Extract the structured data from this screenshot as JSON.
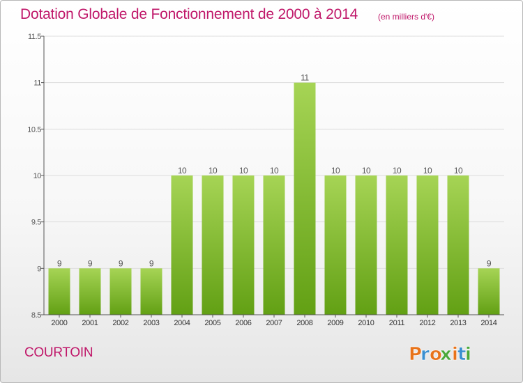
{
  "title": "Dotation Globale de Fonctionnement de 2000 à 2014",
  "subtitle": "(en milliers d'€)",
  "commune": "COURTOIN",
  "logo": {
    "text": "Proxiti",
    "colors": [
      "#e8731a",
      "#3a8fd0",
      "#e8731a",
      "#4aa83a",
      "#e8731a",
      "#3a8fd0",
      "#4aa83a"
    ]
  },
  "colors": {
    "bar_top": "#a6d455",
    "bar_bottom": "#62a014",
    "title": "#c0186a",
    "axis": "#555555",
    "grid": "#dddddd"
  },
  "chart_data": {
    "type": "bar",
    "categories": [
      "2000",
      "2001",
      "2002",
      "2003",
      "2004",
      "2005",
      "2006",
      "2007",
      "2008",
      "2009",
      "2010",
      "2011",
      "2012",
      "2013",
      "2014"
    ],
    "values": [
      9,
      9,
      9,
      9,
      10,
      10,
      10,
      10,
      11,
      10,
      10,
      10,
      10,
      10,
      9
    ],
    "data_labels": [
      "9",
      "9",
      "9",
      "9",
      "10",
      "10",
      "10",
      "10",
      "11",
      "10",
      "10",
      "10",
      "10",
      "10",
      "9"
    ],
    "ylim": [
      8.5,
      11.5
    ],
    "yticks": [
      8.5,
      9,
      9.5,
      10,
      10.5,
      11,
      11.5
    ],
    "ytick_labels": [
      "8.5",
      "9",
      "9.5",
      "10",
      "10.5",
      "11",
      "11.5"
    ],
    "grid": true,
    "xlabel": "",
    "ylabel": ""
  }
}
